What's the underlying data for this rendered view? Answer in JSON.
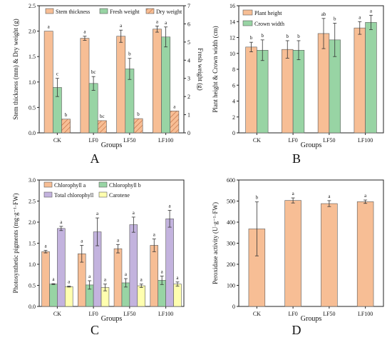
{
  "colors": {
    "orange": "#F7BE95",
    "green": "#98D4A4",
    "purple": "#C3B3DE",
    "yellow": "#FFFFAF",
    "edge": "#5a5a5a",
    "axis": "#222222"
  },
  "chart_data": [
    {
      "panel_label": "A",
      "type": "bar",
      "categories": [
        "CK",
        "LF0",
        "LF50",
        "LF100"
      ],
      "xlabel": "Groups",
      "ylabel": "Stem thickness (mm) & Dry weight (g)",
      "ylabel_right": "Fresh weight (g)",
      "ylim": [
        0,
        2.5
      ],
      "yticks": [
        "0.0",
        "0.5",
        "1.0",
        "1.5",
        "2.0",
        "2.5"
      ],
      "ylim_right": [
        0,
        7
      ],
      "yticks_right": [
        "0",
        "1",
        "2",
        "3",
        "4",
        "5",
        "6",
        "7"
      ],
      "legend": "top",
      "series": [
        {
          "name": "Stem thickness",
          "color": "orange",
          "axis": "left",
          "values": [
            2.0,
            1.86,
            1.9,
            2.04
          ],
          "errors": [
            0.0,
            0.04,
            0.12,
            0.06
          ],
          "letters": [
            "a",
            "a",
            "a",
            "a"
          ]
        },
        {
          "name": "Fresh weight",
          "color": "green",
          "axis": "right",
          "values": [
            2.5,
            2.72,
            3.52,
            5.28
          ],
          "errors": [
            0.5,
            0.38,
            0.58,
            0.55
          ],
          "letters": [
            "c",
            "bc",
            "b",
            "a"
          ]
        },
        {
          "name": "Dry weight",
          "color": "orange",
          "hatch": true,
          "axis": "left",
          "values": [
            0.27,
            0.24,
            0.28,
            0.43
          ],
          "errors": [
            0.0,
            0.0,
            0.0,
            0.0
          ],
          "letters": [
            "b",
            "bc",
            "b",
            "a"
          ]
        }
      ]
    },
    {
      "panel_label": "B",
      "type": "bar",
      "categories": [
        "CK",
        "LF0",
        "LF50",
        "LF100"
      ],
      "xlabel": "Groups",
      "ylabel": "Plant height & Crown width (cm)",
      "ylim": [
        0,
        16
      ],
      "yticks": [
        "0",
        "2",
        "4",
        "6",
        "8",
        "10",
        "12",
        "14",
        "16"
      ],
      "legend": "top-left",
      "series": [
        {
          "name": "Plant height",
          "color": "orange",
          "values": [
            10.8,
            10.5,
            12.5,
            13.2
          ],
          "errors": [
            0.6,
            1.1,
            1.9,
            0.8
          ],
          "letters": [
            "b",
            "b",
            "ab",
            "a"
          ]
        },
        {
          "name": "Crown width",
          "color": "green",
          "values": [
            10.4,
            10.4,
            11.7,
            13.9
          ],
          "errors": [
            1.3,
            1.2,
            2.1,
            0.9
          ],
          "letters": [
            "b",
            "b",
            "b",
            "a"
          ]
        }
      ]
    },
    {
      "panel_label": "C",
      "type": "bar",
      "categories": [
        "CK",
        "LF0",
        "LF50",
        "LF100"
      ],
      "xlabel": "Groups",
      "ylabel": "Photosynthetic pigments (mg·g⁻¹·FW)",
      "ylim": [
        0,
        3.0
      ],
      "yticks": [
        "0.0",
        "0.5",
        "1.0",
        "1.5",
        "2.0",
        "2.5",
        "3.0"
      ],
      "legend": "top",
      "series": [
        {
          "name": "Chlorophyll a",
          "color": "orange",
          "values": [
            1.3,
            1.25,
            1.37,
            1.45
          ],
          "errors": [
            0.03,
            0.2,
            0.1,
            0.15
          ],
          "letters": [
            "a",
            "a",
            "a",
            "a"
          ]
        },
        {
          "name": "Chlorophyll b",
          "color": "green",
          "values": [
            0.53,
            0.51,
            0.56,
            0.62
          ],
          "errors": [
            0.01,
            0.1,
            0.1,
            0.1
          ],
          "letters": [
            "a",
            "a",
            "a",
            "a"
          ]
        },
        {
          "name": "Total chlorophyll",
          "color": "purple",
          "values": [
            1.85,
            1.77,
            1.94,
            2.08
          ],
          "errors": [
            0.05,
            0.33,
            0.18,
            0.2
          ],
          "letters": [
            "a",
            "a",
            "a",
            "a"
          ]
        },
        {
          "name": "Carotene",
          "color": "yellow",
          "values": [
            0.47,
            0.45,
            0.49,
            0.53
          ],
          "errors": [
            0.01,
            0.08,
            0.04,
            0.05
          ],
          "letters": [
            "a",
            "a",
            "a",
            "a"
          ]
        }
      ]
    },
    {
      "panel_label": "D",
      "type": "bar",
      "categories": [
        "CK",
        "LF0",
        "LF50",
        "LF100"
      ],
      "xlabel": "Groups",
      "ylabel": "Peroxidase activity (U·g⁻¹·FW)",
      "ylim": [
        0,
        600
      ],
      "yticks": [
        "0",
        "100",
        "200",
        "300",
        "400",
        "500",
        "600"
      ],
      "series": [
        {
          "name": "",
          "color": "orange",
          "values": [
            368,
            503,
            488,
            497
          ],
          "errors": [
            128,
            12,
            14,
            8
          ],
          "letters": [
            "b",
            "a",
            "a",
            "a"
          ]
        }
      ]
    }
  ]
}
